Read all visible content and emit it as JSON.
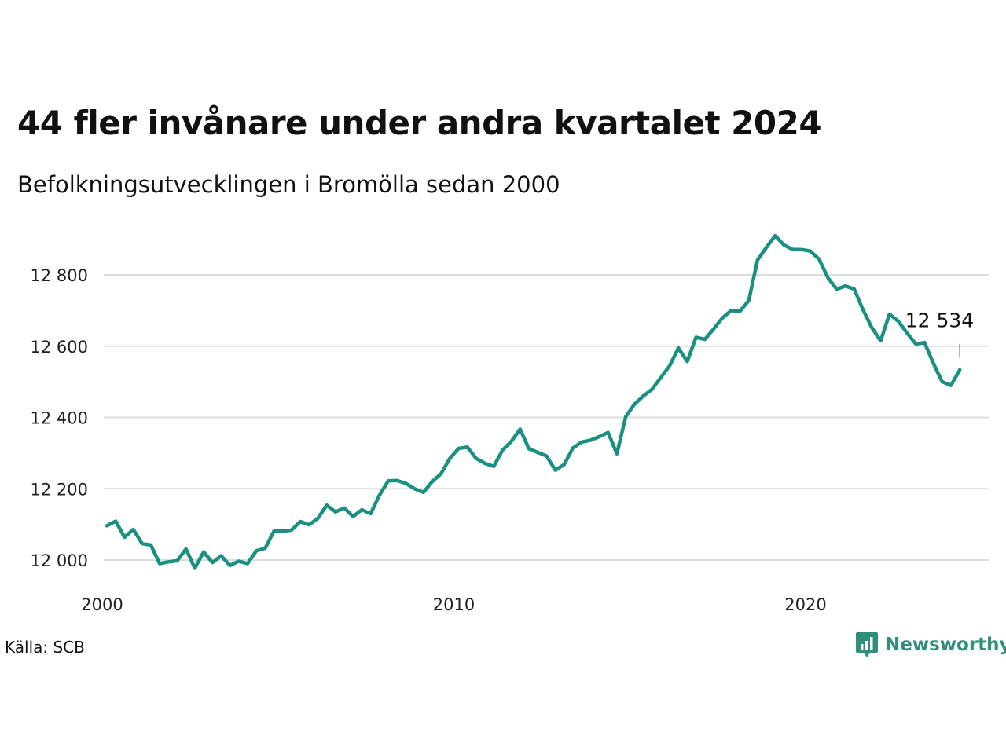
{
  "title": "44 fler invånare under andra kvartalet 2024",
  "subtitle": "Befolkningsutvecklingen i Bromölla sedan 2000",
  "source": "Källa: SCB",
  "brand": {
    "name": "Newsworthy",
    "icon": "newsworthy-logo-icon"
  },
  "colors": {
    "line": "#1a9180",
    "grid": "#dddddd",
    "annotation": "#111111"
  },
  "chart_data": {
    "type": "line",
    "title": "44 fler invånare under andra kvartalet 2024",
    "subtitle": "Befolkningsutvecklingen i Bromölla sedan 2000",
    "xlabel": "",
    "ylabel": "",
    "xlim": [
      2000,
      2025
    ],
    "ylim": [
      11920,
      12960
    ],
    "grid": true,
    "x_ticks": [
      2000,
      2010,
      2020
    ],
    "x_tick_labels": [
      "2000",
      "2010",
      "2020"
    ],
    "y_ticks": [
      12000,
      12200,
      12400,
      12600,
      12800
    ],
    "y_tick_labels": [
      "12 000",
      "12 200",
      "12 400",
      "12 600",
      "12 800"
    ],
    "annotation": {
      "text": "12 534",
      "x": 2024.25,
      "y": 12534
    },
    "series": [
      {
        "name": "",
        "x": [
          2000.0,
          2000.25,
          2000.5,
          2000.75,
          2001.0,
          2001.25,
          2001.5,
          2001.75,
          2002.0,
          2002.25,
          2002.5,
          2002.75,
          2003.0,
          2003.25,
          2003.5,
          2003.75,
          2004.0,
          2004.25,
          2004.5,
          2004.75,
          2005.0,
          2005.25,
          2005.5,
          2005.75,
          2006.0,
          2006.25,
          2006.5,
          2006.75,
          2007.0,
          2007.25,
          2007.5,
          2007.75,
          2008.0,
          2008.25,
          2008.5,
          2008.75,
          2009.0,
          2009.25,
          2009.5,
          2009.75,
          2010.0,
          2010.25,
          2010.5,
          2010.75,
          2011.0,
          2011.25,
          2011.5,
          2011.75,
          2012.0,
          2012.25,
          2012.5,
          2012.75,
          2013.0,
          2013.25,
          2013.5,
          2013.75,
          2014.0,
          2014.25,
          2014.5,
          2014.75,
          2015.0,
          2015.25,
          2015.5,
          2015.75,
          2016.0,
          2016.25,
          2016.5,
          2016.75,
          2017.0,
          2017.25,
          2017.5,
          2017.75,
          2018.0,
          2018.25,
          2018.5,
          2018.75,
          2019.0,
          2019.25,
          2019.5,
          2019.75,
          2020.0,
          2020.25,
          2020.5,
          2020.75,
          2021.0,
          2021.25,
          2021.5,
          2021.75,
          2022.0,
          2022.25,
          2022.5,
          2022.75,
          2023.0,
          2023.25,
          2023.5,
          2023.75,
          2024.0,
          2024.25
        ],
        "y": [
          12096,
          12109,
          12064,
          12086,
          12046,
          12042,
          11990,
          11995,
          11998,
          12031,
          11977,
          12023,
          11993,
          12012,
          11985,
          11997,
          11990,
          12026,
          12033,
          12081,
          12081,
          12084,
          12108,
          12099,
          12117,
          12154,
          12135,
          12146,
          12122,
          12141,
          12130,
          12182,
          12222,
          12223,
          12215,
          12200,
          12190,
          12220,
          12242,
          12285,
          12313,
          12317,
          12285,
          12271,
          12263,
          12308,
          12333,
          12367,
          12312,
          12302,
          12292,
          12252,
          12268,
          12314,
          12331,
          12336,
          12346,
          12358,
          12298,
          12402,
          12437,
          12460,
          12479,
          12512,
          12545,
          12595,
          12557,
          12625,
          12619,
          12648,
          12679,
          12700,
          12698,
          12728,
          12842,
          12877,
          12910,
          12884,
          12871,
          12871,
          12867,
          12844,
          12792,
          12760,
          12769,
          12760,
          12702,
          12652,
          12615,
          12690,
          12670,
          12637,
          12606,
          12610,
          12552,
          12500,
          12490,
          12534
        ]
      }
    ]
  }
}
